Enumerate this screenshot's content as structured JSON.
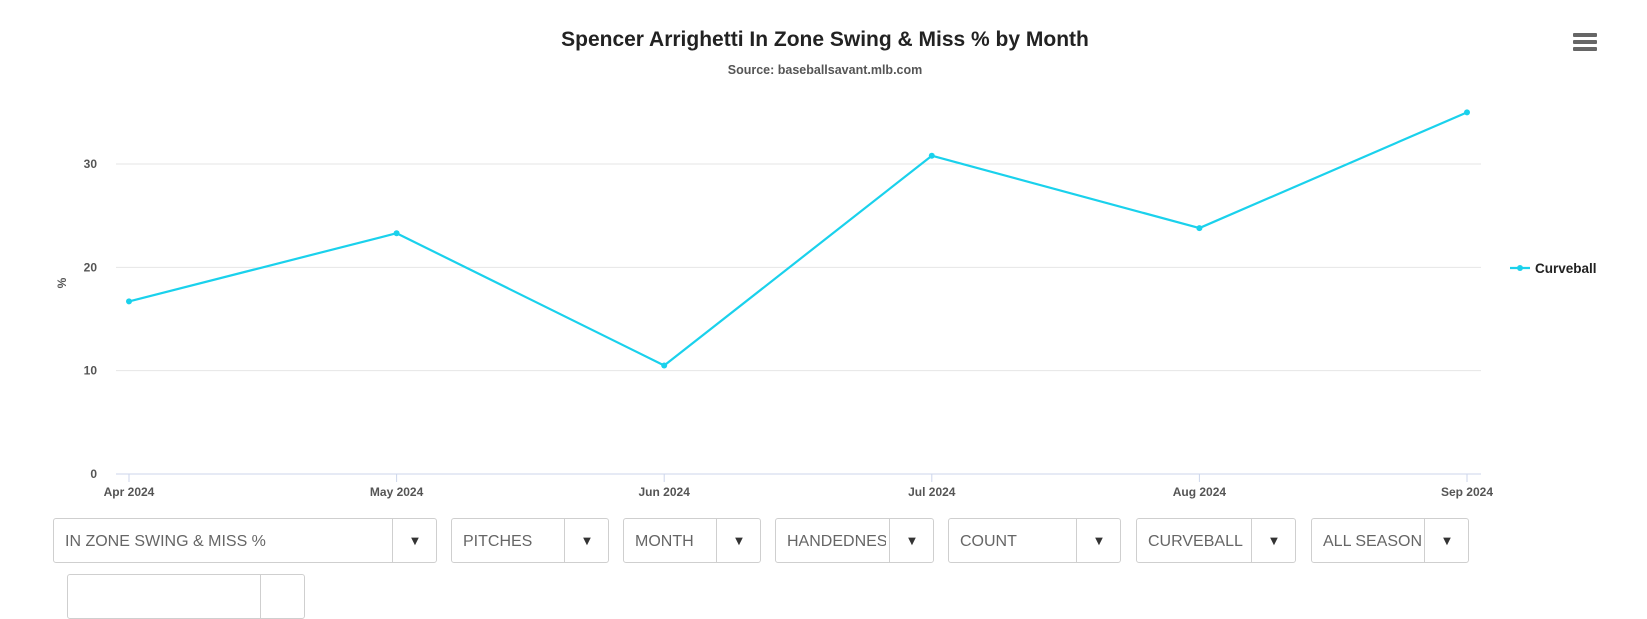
{
  "chart_data": {
    "type": "line",
    "title": "Spencer Arrighetti In Zone Swing & Miss % by Month",
    "subtitle": "Source: baseballsavant.mlb.com",
    "ylabel": "%",
    "categories": [
      "Apr 2024",
      "May 2024",
      "Jun 2024",
      "Jul 2024",
      "Aug 2024",
      "Sep 2024"
    ],
    "series": [
      {
        "name": "Curveball",
        "color": "#1ad1ec",
        "values": [
          16.7,
          23.3,
          10.5,
          30.8,
          23.8,
          35.0
        ]
      }
    ],
    "ylim": [
      0,
      35
    ],
    "yticks": [
      0,
      10,
      20,
      30
    ],
    "grid": true,
    "legend_position": "right"
  },
  "menu": {
    "icon": "hamburger-menu-icon"
  },
  "controls": [
    {
      "name": "metric-select",
      "label": "IN ZONE SWING & MISS %"
    },
    {
      "name": "type-select",
      "label": "PITCHES"
    },
    {
      "name": "group-select",
      "label": "MONTH"
    },
    {
      "name": "handedness-select",
      "label": "HANDEDNESS"
    },
    {
      "name": "count-select",
      "label": "COUNT"
    },
    {
      "name": "pitch-type-select",
      "label": "CURVEBALL"
    },
    {
      "name": "season-select",
      "label": "ALL SEASONS"
    },
    {
      "name": "extra-select",
      "label": ""
    }
  ],
  "dropdown_arrow": "▼"
}
